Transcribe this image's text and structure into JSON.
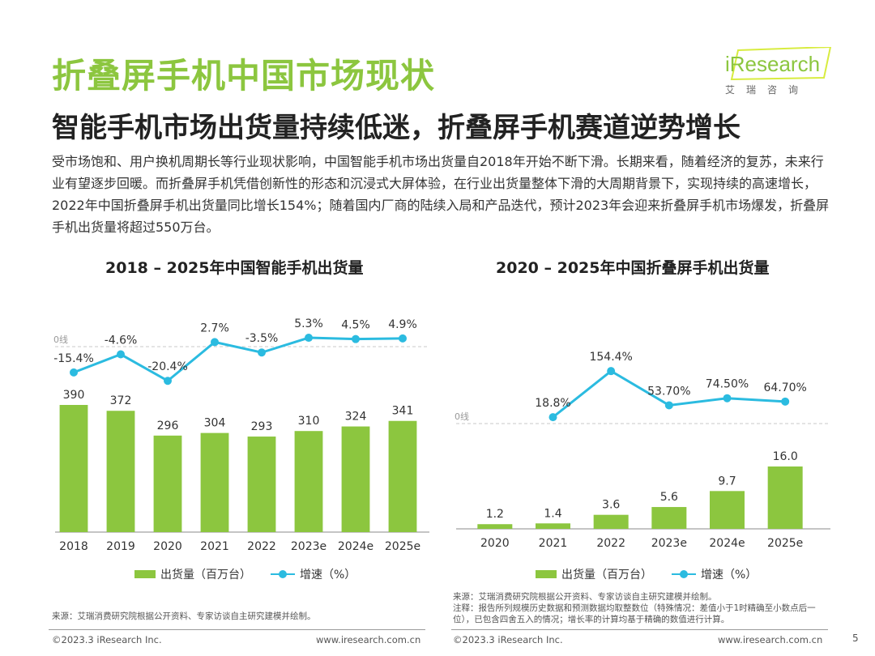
{
  "header": {
    "title": "折叠屏手机中国市场现状",
    "subtitle": "智能手机市场出货量持续低迷，折叠屏手机赛道逆势增长",
    "intro": "受市场饱和、用户换机周期长等行业现状影响，中国智能手机市场出货量自2018年开始不断下滑。长期来看，随着经济的复苏，未来行业有望逐步回暖。而折叠屏手机凭借创新性的形态和沉浸式大屏体验，在行业出货量整体下滑的大周期背景下，实现持续的高速增长，2022年中国折叠屏手机出货量同比增长154%；随着国内厂商的陆续入局和产品迭代，预计2023年会迎来折叠屏手机市场爆发，折叠屏手机出货量将超过550万台。"
  },
  "logo": {
    "word": "iResearch",
    "cn": "艾瑞咨询"
  },
  "chart_data": [
    {
      "type": "bar",
      "title": "2018 – 2025年中国智能手机出货量",
      "categories": [
        "2018",
        "2019",
        "2020",
        "2021",
        "2022",
        "2023e",
        "2024e",
        "2025e"
      ],
      "series": [
        {
          "name": "出货量（百万台）",
          "type": "bar",
          "values": [
            390,
            372,
            296,
            304,
            293,
            310,
            324,
            341
          ],
          "labels": [
            "390",
            "372",
            "296",
            "304",
            "293",
            "310",
            "324",
            "341"
          ]
        },
        {
          "name": "增速（%）",
          "type": "line",
          "values": [
            -15.4,
            -4.6,
            -20.4,
            2.7,
            -3.5,
            5.3,
            4.5,
            4.9
          ],
          "labels": [
            "-15.4%",
            "-4.6%",
            "-20.4%",
            "2.7%",
            "-3.5%",
            "5.3%",
            "4.5%",
            "4.9%"
          ]
        }
      ],
      "zero_line_label": "0线",
      "colors": {
        "bar": "#8cc63f",
        "line": "#2bbbe0"
      },
      "legend_position": "bottom",
      "grid": false
    },
    {
      "type": "bar",
      "title": "2020 – 2025年中国折叠屏手机出货量",
      "categories": [
        "2020",
        "2021",
        "2022",
        "2023e",
        "2024e",
        "2025e"
      ],
      "series": [
        {
          "name": "出货量（百万台）",
          "type": "bar",
          "values": [
            1.2,
            1.4,
            3.6,
            5.6,
            9.7,
            16.0
          ],
          "labels": [
            "1.2",
            "1.4",
            "3.6",
            "5.6",
            "9.7",
            "16.0"
          ]
        },
        {
          "name": "增速（%）",
          "type": "line",
          "values": [
            null,
            18.8,
            154.4,
            53.7,
            74.5,
            64.7
          ],
          "labels": [
            "",
            "18.8%",
            "154.4%",
            "53.70%",
            "74.50%",
            "64.70%"
          ]
        }
      ],
      "zero_line_label": "0线",
      "colors": {
        "bar": "#8cc63f",
        "line": "#2bbbe0"
      },
      "legend_position": "bottom",
      "grid": false
    }
  ],
  "legend": {
    "bar_label": "出货量（百万台）",
    "line_label": "增速（%）"
  },
  "sources": {
    "left": "来源：艾瑞消费研究院根据公开资料、专家访谈自主研究建模并绘制。",
    "right_source": "来源：艾瑞消费研究院根据公开资料、专家访谈自主研究建模并绘制。",
    "right_note": "注释：报告所列规模历史数据和预测数据均取整数位（特殊情况：差值小于1时精确至小数点后一位），已包含四舍五入的情况；增长率的计算均基于精确的数值进行计算。"
  },
  "footer": {
    "left_copyright": "©2023.3 iResearch Inc.",
    "left_url": "www.iresearch.com.cn",
    "right_copyright": "©2023.3 iResearch Inc.",
    "right_url": "www.iresearch.com.cn",
    "page": "5"
  }
}
